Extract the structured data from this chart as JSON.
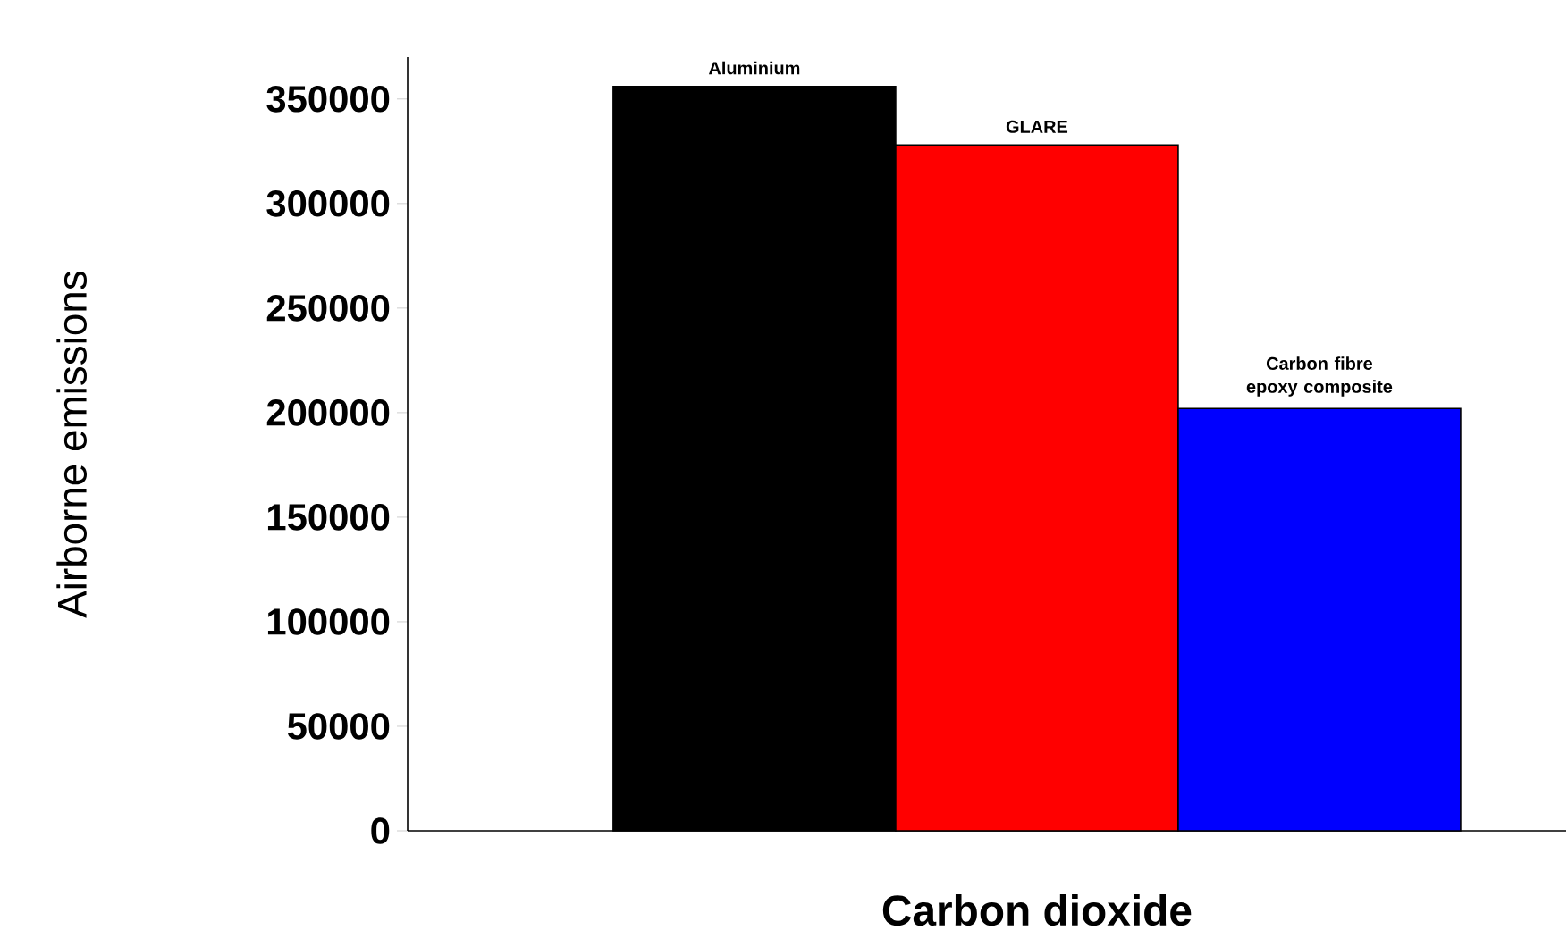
{
  "chart_data": {
    "type": "bar",
    "ylabel": "Airborne emissions",
    "categories": [
      "Carbon dioxide"
    ],
    "series": [
      {
        "name": "Aluminium",
        "color": "#000000",
        "values": [
          356000
        ]
      },
      {
        "name": "GLARE",
        "color": "#ff0000",
        "values": [
          328000
        ]
      },
      {
        "name": "Carbon fibre epoxy composite",
        "color": "#0000ff",
        "values": [
          202000
        ]
      }
    ],
    "ylim": [
      0,
      370000
    ],
    "yticks": [
      0,
      50000,
      100000,
      150000,
      200000,
      250000,
      300000,
      350000
    ],
    "grid": false
  }
}
